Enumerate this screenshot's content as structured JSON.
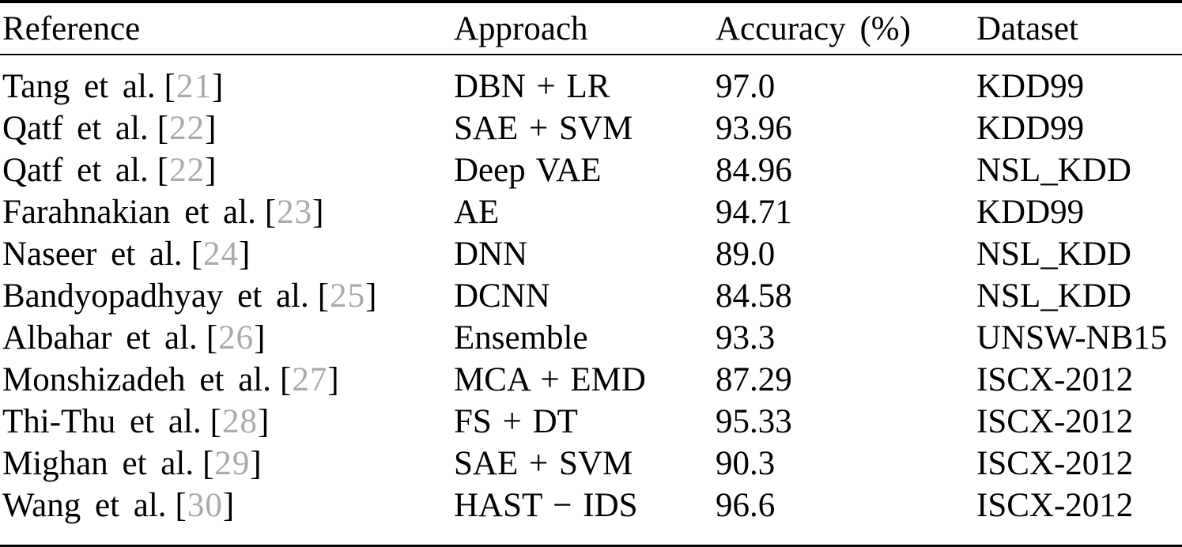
{
  "table": {
    "columns": {
      "reference": "Reference",
      "approach": "Approach",
      "accuracy": "Accuracy (%)",
      "dataset": "Dataset"
    },
    "cite_open": "[",
    "cite_close": "]",
    "rows": [
      {
        "reference": "Tang et al.",
        "cite": "21",
        "approach": "DBN + LR",
        "accuracy": "97.0",
        "dataset": "KDD99"
      },
      {
        "reference": "Qatf et al.",
        "cite": "22",
        "approach": "SAE + SVM",
        "accuracy": "93.96",
        "dataset": "KDD99"
      },
      {
        "reference": "Qatf et al.",
        "cite": "22",
        "approach": "Deep VAE",
        "accuracy": "84.96",
        "dataset": "NSL_KDD"
      },
      {
        "reference": "Farahnakian et al.",
        "cite": "23",
        "approach": "AE",
        "accuracy": "94.71",
        "dataset": "KDD99"
      },
      {
        "reference": "Naseer et al.",
        "cite": "24",
        "approach": "DNN",
        "accuracy": "89.0",
        "dataset": "NSL_KDD"
      },
      {
        "reference": "Bandyopadhyay et al.",
        "cite": "25",
        "approach": "DCNN",
        "accuracy": "84.58",
        "dataset": "NSL_KDD"
      },
      {
        "reference": "Albahar et al.",
        "cite": "26",
        "approach": "Ensemble",
        "accuracy": "93.3",
        "dataset": "UNSW-NB15"
      },
      {
        "reference": "Monshizadeh et al.",
        "cite": "27",
        "approach": "MCA + EMD",
        "accuracy": "87.29",
        "dataset": "ISCX-2012"
      },
      {
        "reference": "Thi-Thu et al.",
        "cite": "28",
        "approach": "FS + DT",
        "accuracy": "95.33",
        "dataset": "ISCX-2012"
      },
      {
        "reference": "Mighan et al.",
        "cite": "29",
        "approach": "SAE + SVM",
        "accuracy": "90.3",
        "dataset": "ISCX-2012"
      },
      {
        "reference": "Wang et al.",
        "cite": "30",
        "approach": "HAST − IDS",
        "accuracy": "96.6",
        "dataset": "ISCX-2012"
      }
    ]
  },
  "colors": {
    "text": "#000000",
    "citation_gray": "#aaaaaa",
    "rule": "#000000",
    "background": "#ffffff"
  }
}
